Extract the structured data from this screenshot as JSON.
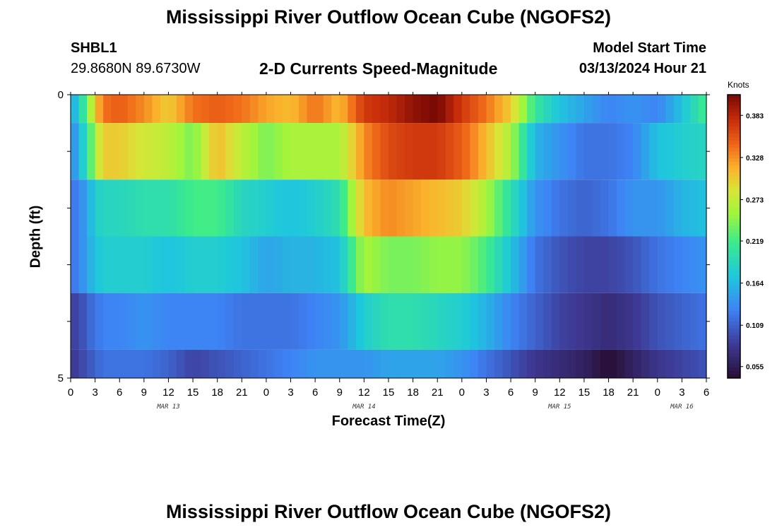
{
  "header": {
    "title": "Mississippi River Outflow Ocean Cube (NGOFS2)",
    "station_id": "SHBL1",
    "station_coords": "29.8680N  89.6730W",
    "plot_title": "2-D Currents Speed-Magnitude",
    "model_start_label": "Model Start Time",
    "model_start_value": "03/13/2024 Hour 21"
  },
  "footer": {
    "title": "Mississippi River Outflow Ocean Cube (NGOFS2)"
  },
  "chart_data": {
    "type": "heatmap",
    "title": "2-D Currents Speed-Magnitude",
    "xlabel": "Forecast Time(Z)",
    "ylabel": "Depth (ft)",
    "x_ticks": [
      "0",
      "3",
      "6",
      "9",
      "12",
      "15",
      "18",
      "21",
      "0",
      "3",
      "6",
      "9",
      "12",
      "15",
      "18",
      "21",
      "0",
      "3",
      "6",
      "9",
      "12",
      "15",
      "18",
      "21",
      "0",
      "3",
      "6"
    ],
    "x_hours": [
      0,
      3,
      6,
      9,
      12,
      15,
      18,
      21,
      24,
      27,
      30,
      33,
      36,
      39,
      42,
      45,
      48,
      51,
      54,
      57,
      60,
      63,
      66,
      69,
      72,
      75,
      78
    ],
    "date_labels": [
      {
        "label": "MAR 13",
        "hour": 12
      },
      {
        "label": "MAR 14",
        "hour": 36
      },
      {
        "label": "MAR 15",
        "hour": 60
      },
      {
        "label": "MAR 16",
        "hour": 75
      }
    ],
    "xlim": [
      0,
      78
    ],
    "y_ticks": [
      "0",
      "5"
    ],
    "ylim": [
      0,
      5
    ],
    "depth_bins": [
      {
        "top": 0.0,
        "bottom": 0.5
      },
      {
        "top": 0.5,
        "bottom": 1.5
      },
      {
        "top": 1.5,
        "bottom": 2.5
      },
      {
        "top": 2.5,
        "bottom": 3.5
      },
      {
        "top": 3.5,
        "bottom": 4.5
      },
      {
        "top": 4.5,
        "bottom": 5.0
      }
    ],
    "colorbar": {
      "unit": "Knots",
      "min": 0.04,
      "max": 0.41,
      "ticks": [
        "0.383",
        "0.328",
        "0.273",
        "0.219",
        "0.164",
        "0.109",
        "0.055"
      ],
      "tick_values": [
        0.383,
        0.328,
        0.273,
        0.219,
        0.164,
        0.109,
        0.055
      ]
    },
    "keyframe_hours": [
      0,
      1,
      2,
      3,
      4,
      6,
      9,
      12,
      15,
      18,
      21,
      24,
      27,
      30,
      33,
      36,
      39,
      42,
      45,
      48,
      51,
      54,
      57,
      60,
      63,
      66,
      69,
      72,
      75,
      78
    ],
    "speed_profiles": [
      [
        0.15,
        0.18,
        0.23,
        0.3,
        0.34,
        0.35,
        0.33,
        0.3,
        0.34,
        0.35,
        0.34,
        0.32,
        0.31,
        0.34,
        0.31,
        0.37,
        0.38,
        0.4,
        0.41,
        0.37,
        0.34,
        0.3,
        0.21,
        0.17,
        0.15,
        0.13,
        0.14,
        0.13,
        0.17,
        0.22
      ],
      [
        0.13,
        0.16,
        0.2,
        0.26,
        0.3,
        0.3,
        0.28,
        0.27,
        0.24,
        0.31,
        0.27,
        0.24,
        0.26,
        0.26,
        0.26,
        0.33,
        0.36,
        0.37,
        0.37,
        0.35,
        0.31,
        0.26,
        0.16,
        0.14,
        0.12,
        0.12,
        0.13,
        0.17,
        0.18,
        0.19
      ],
      [
        0.12,
        0.13,
        0.15,
        0.18,
        0.19,
        0.19,
        0.2,
        0.2,
        0.22,
        0.22,
        0.19,
        0.18,
        0.17,
        0.18,
        0.2,
        0.31,
        0.33,
        0.32,
        0.31,
        0.3,
        0.26,
        0.2,
        0.14,
        0.12,
        0.11,
        0.12,
        0.14,
        0.14,
        0.16,
        0.17
      ],
      [
        0.12,
        0.13,
        0.15,
        0.17,
        0.18,
        0.18,
        0.18,
        0.17,
        0.18,
        0.18,
        0.17,
        0.15,
        0.16,
        0.16,
        0.17,
        0.26,
        0.24,
        0.24,
        0.25,
        0.25,
        0.22,
        0.17,
        0.12,
        0.1,
        0.09,
        0.09,
        0.1,
        0.12,
        0.13,
        0.14
      ],
      [
        0.09,
        0.09,
        0.11,
        0.12,
        0.13,
        0.13,
        0.14,
        0.13,
        0.13,
        0.13,
        0.12,
        0.12,
        0.12,
        0.13,
        0.14,
        0.18,
        0.2,
        0.2,
        0.19,
        0.18,
        0.16,
        0.13,
        0.11,
        0.09,
        0.08,
        0.07,
        0.08,
        0.1,
        0.11,
        0.12
      ],
      [
        0.08,
        0.09,
        0.1,
        0.11,
        0.12,
        0.12,
        0.12,
        0.11,
        0.09,
        0.1,
        0.11,
        0.12,
        0.13,
        0.14,
        0.14,
        0.14,
        0.15,
        0.15,
        0.15,
        0.14,
        0.12,
        0.1,
        0.08,
        0.07,
        0.06,
        0.04,
        0.06,
        0.08,
        0.09,
        0.1
      ]
    ]
  }
}
